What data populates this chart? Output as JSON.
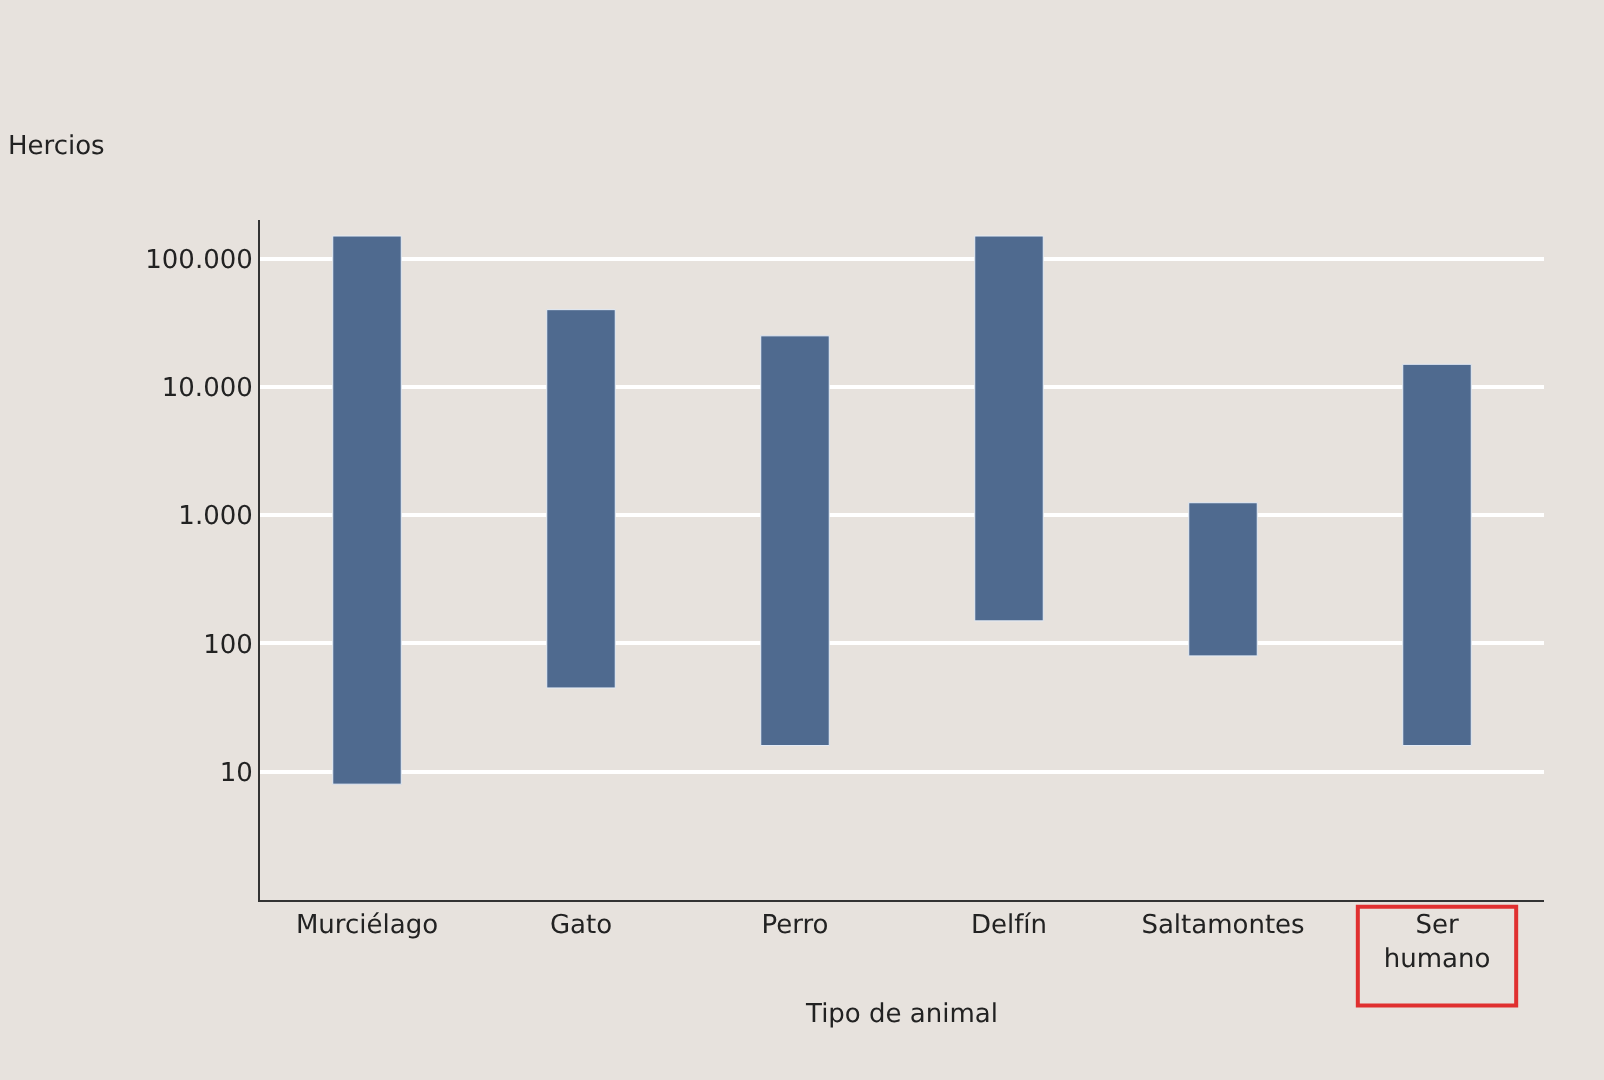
{
  "chart_data": {
    "type": "bar",
    "xlabel": "Tipo de animal",
    "ylabel": "Hercios",
    "categories": [
      "Murciélago",
      "Gato",
      "Perro",
      "Delfín",
      "Saltamontes",
      "Ser\nhumano"
    ],
    "base": [
      8,
      45,
      16,
      150,
      80,
      16
    ],
    "values": [
      149992,
      39955,
      24984,
      149850,
      1170,
      14984
    ],
    "color": "#4f6a8f",
    "log": true,
    "ylim": [
      1,
      200000
    ],
    "yticks": [
      10,
      100,
      {
        "value": 1000,
        "label": "1.000"
      },
      {
        "value": 10000,
        "label": "10.000"
      },
      {
        "value": 100000,
        "label": "100.000"
      }
    ],
    "grid": "y",
    "legend": false
  }
}
